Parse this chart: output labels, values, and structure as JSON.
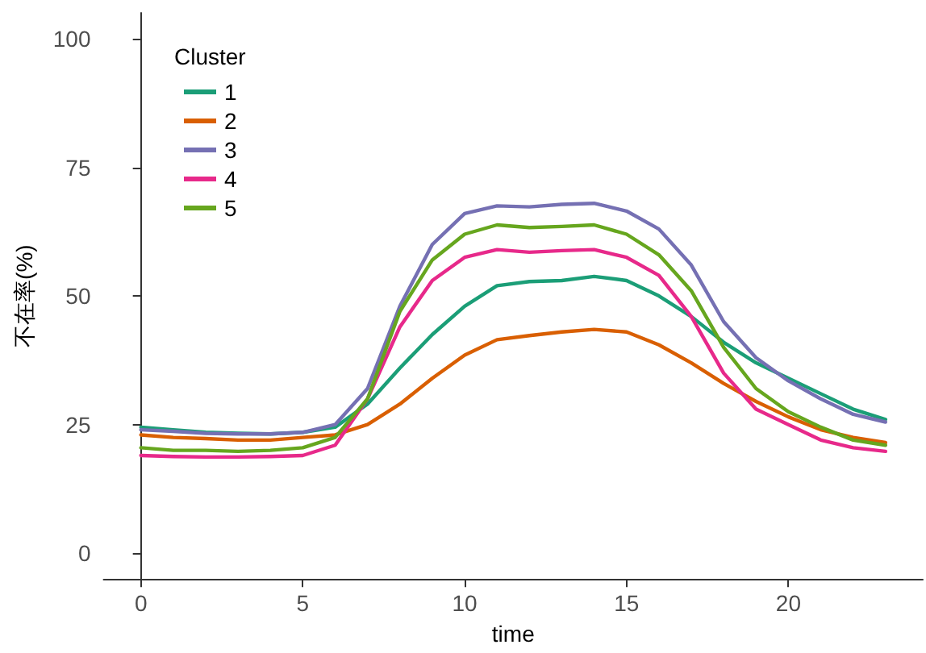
{
  "chart_data": {
    "type": "line",
    "xlabel": "time",
    "ylabel": "不在率(%)",
    "legend_title": "Cluster",
    "legend": "top left",
    "grid": false,
    "line_style": "solid",
    "marker": "none",
    "x": [
      0,
      1,
      2,
      3,
      4,
      5,
      6,
      7,
      8,
      9,
      10,
      11,
      12,
      13,
      14,
      15,
      16,
      17,
      18,
      19,
      20,
      21,
      22,
      23
    ],
    "xlim": [
      -1.15,
      24.15
    ],
    "xticks": [
      0,
      5,
      10,
      15,
      20
    ],
    "ylim": [
      -5,
      105
    ],
    "yticks": [
      0,
      25,
      50,
      75,
      100
    ],
    "series": [
      {
        "name": "1",
        "color": "#1b9e77",
        "values": [
          24.5,
          24,
          23.5,
          23.3,
          23.2,
          23.5,
          24.5,
          29,
          36,
          42.5,
          48,
          52,
          52.8,
          53,
          53.8,
          53,
          50,
          46,
          41,
          37,
          34,
          31,
          28,
          26
        ]
      },
      {
        "name": "2",
        "color": "#d95f02",
        "values": [
          23,
          22.5,
          22.3,
          22,
          22,
          22.5,
          23,
          25,
          29,
          34,
          38.5,
          41.5,
          42.3,
          43,
          43.5,
          43,
          40.5,
          37,
          33,
          29.5,
          26.5,
          24,
          22.5,
          21.5
        ]
      },
      {
        "name": "3",
        "color": "#7570b3",
        "values": [
          24,
          23.7,
          23.3,
          23.2,
          23.2,
          23.5,
          25,
          32,
          48,
          60,
          66,
          67.5,
          67.3,
          67.8,
          68,
          66.5,
          63,
          56,
          45,
          38,
          33.5,
          30,
          27,
          25.5
        ]
      },
      {
        "name": "4",
        "color": "#e7298a",
        "values": [
          19,
          18.8,
          18.7,
          18.7,
          18.8,
          19,
          21,
          30,
          44,
          53,
          57.5,
          59,
          58.5,
          58.8,
          59,
          57.5,
          54,
          46,
          35,
          28,
          25,
          22,
          20.5,
          19.8
        ]
      },
      {
        "name": "5",
        "color": "#66a61e",
        "values": [
          20.5,
          20,
          20,
          19.8,
          20,
          20.5,
          22.5,
          30,
          47,
          57,
          62,
          63.8,
          63.3,
          63.5,
          63.8,
          62,
          58,
          51,
          40,
          32,
          27.5,
          24.5,
          22,
          21
        ]
      }
    ]
  }
}
